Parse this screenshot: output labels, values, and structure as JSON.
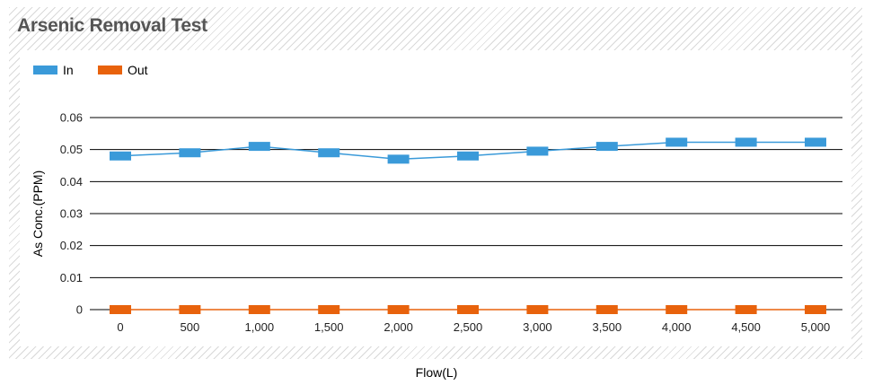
{
  "chart_data": {
    "type": "line",
    "title": "Arsenic Removal Test",
    "xlabel": "Flow(L)",
    "ylabel": "As Conc.(PPM)",
    "categories": [
      "0",
      "500",
      "1,000",
      "1,500",
      "2,000",
      "2,500",
      "3,000",
      "3,500",
      "4,000",
      "4,500",
      "5,000"
    ],
    "y_ticks": [
      "0",
      "0.01",
      "0.02",
      "0.03",
      "0.04",
      "0.05",
      "0.06"
    ],
    "ylim": [
      0,
      0.06
    ],
    "grid": "horizontal",
    "legend_position": "top-left",
    "series": [
      {
        "name": "In",
        "color": "#3a9ad9",
        "values": [
          0.048,
          0.049,
          0.051,
          0.049,
          0.047,
          0.048,
          0.0495,
          0.051,
          0.0523,
          0.0523,
          0.0523
        ]
      },
      {
        "name": "Out",
        "color": "#e8620c",
        "values": [
          0,
          0,
          0,
          0,
          0,
          0,
          0,
          0,
          0,
          0,
          0
        ]
      }
    ]
  }
}
